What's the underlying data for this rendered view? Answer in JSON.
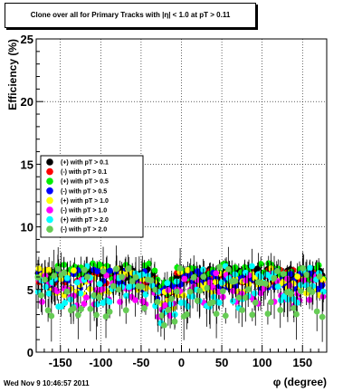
{
  "title": "Clone  over all for Primary Tracks with |η| < 1.0 at pT > 0.11",
  "footer_date": "Wed Nov  9 10:46:57 2011",
  "chart_data": {
    "type": "scatter",
    "xlabel": "φ (degree)",
    "ylabel": "Efficiency (%)",
    "xlim": [
      -180,
      180
    ],
    "ylim": [
      0,
      25
    ],
    "xticks": [
      -150,
      -100,
      -50,
      0,
      50,
      100,
      150
    ],
    "yticks": [
      0,
      5,
      10,
      15,
      20,
      25
    ],
    "grid": true,
    "legend_position": "left-middle",
    "series": [
      {
        "name": "(+) with pT > 0.1",
        "color": "#000000",
        "level": 6.3,
        "spread": 0.4
      },
      {
        "name": "(-) with pT > 0.1",
        "color": "#ff0000",
        "level": 6.0,
        "spread": 0.6
      },
      {
        "name": "(+) with pT > 0.5",
        "color": "#00ee00",
        "level": 6.4,
        "spread": 0.7
      },
      {
        "name": "(-) with pT > 0.5",
        "color": "#0000ff",
        "level": 5.8,
        "spread": 0.8
      },
      {
        "name": "(+) with pT > 1.0",
        "color": "#ffff00",
        "level": 5.6,
        "spread": 1.1
      },
      {
        "name": "(-) with pT > 1.0",
        "color": "#ff00ff",
        "level": 5.0,
        "spread": 1.3
      },
      {
        "name": "(+) with pT > 2.0",
        "color": "#00ffff",
        "level": 5.2,
        "spread": 1.7
      },
      {
        "name": "(-) with pT > 2.0",
        "color": "#66cc55",
        "level": 4.8,
        "spread": 2.0
      }
    ]
  }
}
